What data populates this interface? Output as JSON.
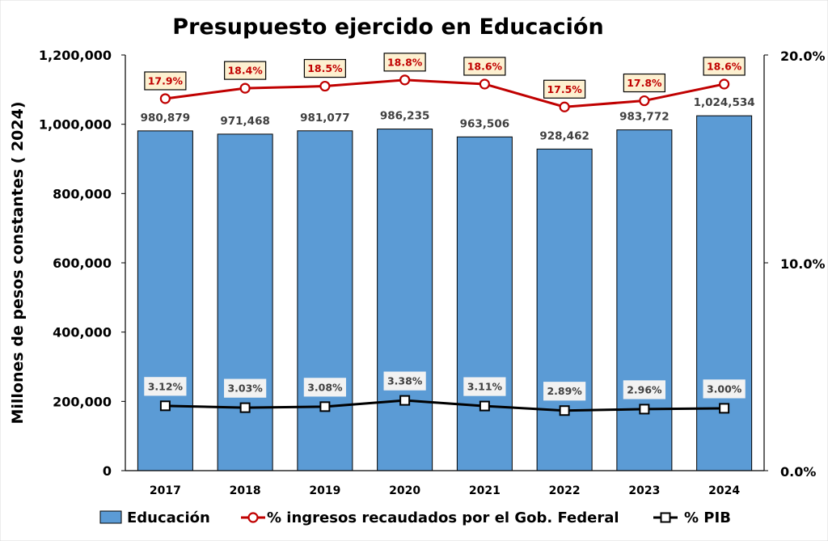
{
  "chart_data": {
    "type": "bar",
    "title": "Presupuesto ejercido en Educación",
    "ylabel": "Millones de pesos constantes ( 2024)",
    "categories": [
      "2017",
      "2018",
      "2019",
      "2020",
      "2021",
      "2022",
      "2023",
      "2024"
    ],
    "ylim": [
      0,
      1200000
    ],
    "yticks": [
      "0",
      "200,000",
      "400,000",
      "600,000",
      "800,000",
      "1,000,000",
      "1,200,000"
    ],
    "y2lim": [
      0,
      20
    ],
    "y2ticks": [
      "0.0%",
      "10.0%",
      "20.0%"
    ],
    "series": [
      {
        "name": "Educación",
        "type": "bar",
        "axis": "left",
        "color": "#5b9bd5",
        "values": [
          980879,
          971468,
          981077,
          986235,
          963506,
          928462,
          983772,
          1024534
        ],
        "labels": [
          "980,879",
          "971,468",
          "981,077",
          "986,235",
          "963,506",
          "928,462",
          "983,772",
          "1,024,534"
        ]
      },
      {
        "name": "% ingresos recaudados por el Gob. Federal",
        "type": "line",
        "axis": "right",
        "color": "#c00000",
        "marker": "circle",
        "values": [
          17.9,
          18.4,
          18.5,
          18.8,
          18.6,
          17.5,
          17.8,
          18.6
        ],
        "labels": [
          "17.9%",
          "18.4%",
          "18.5%",
          "18.8%",
          "18.6%",
          "17.5%",
          "17.8%",
          "18.6%"
        ]
      },
      {
        "name": "% PIB",
        "type": "line",
        "axis": "right",
        "color": "#000000",
        "marker": "square",
        "values": [
          3.12,
          3.03,
          3.08,
          3.38,
          3.11,
          2.89,
          2.96,
          3.0
        ],
        "labels": [
          "3.12%",
          "3.03%",
          "3.08%",
          "3.38%",
          "3.11%",
          "2.89%",
          "2.96%",
          "3.00%"
        ]
      }
    ],
    "legend_position": "bottom"
  }
}
